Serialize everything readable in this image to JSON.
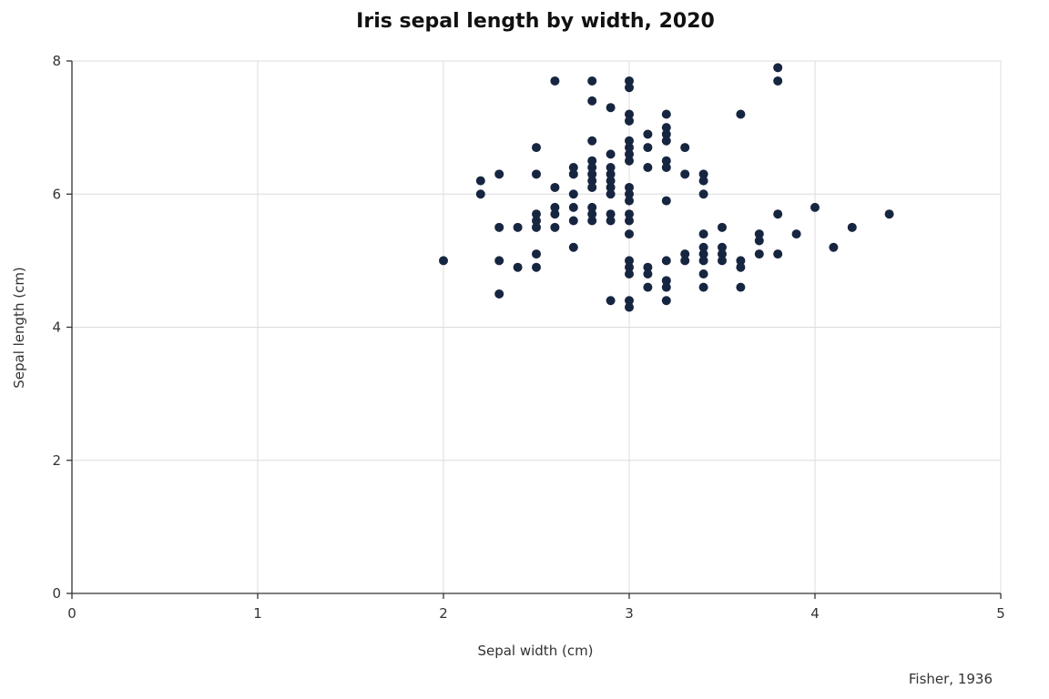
{
  "chart_data": {
    "type": "scatter",
    "title": "Iris sepal length by width, 2020",
    "xlabel": "Sepal width (cm)",
    "ylabel": "Sepal length (cm)",
    "source": "Fisher, 1936",
    "xlim": [
      0,
      5
    ],
    "ylim": [
      0,
      8
    ],
    "xticks": [
      0,
      1,
      2,
      3,
      4,
      5
    ],
    "yticks": [
      0,
      2,
      4,
      6,
      8
    ],
    "grid": true,
    "marker_color": "#172640",
    "points": [
      [
        2.0,
        5.0
      ],
      [
        2.2,
        6.2
      ],
      [
        2.2,
        6.0
      ],
      [
        2.3,
        6.3
      ],
      [
        2.3,
        5.5
      ],
      [
        2.3,
        5.0
      ],
      [
        2.3,
        4.5
      ],
      [
        2.4,
        5.5
      ],
      [
        2.4,
        4.9
      ],
      [
        2.5,
        6.7
      ],
      [
        2.5,
        6.3
      ],
      [
        2.5,
        5.7
      ],
      [
        2.5,
        5.6
      ],
      [
        2.5,
        5.5
      ],
      [
        2.5,
        5.1
      ],
      [
        2.5,
        4.9
      ],
      [
        2.6,
        7.7
      ],
      [
        2.6,
        6.1
      ],
      [
        2.6,
        5.8
      ],
      [
        2.6,
        5.7
      ],
      [
        2.6,
        5.5
      ],
      [
        2.7,
        6.4
      ],
      [
        2.7,
        6.3
      ],
      [
        2.7,
        6.0
      ],
      [
        2.7,
        5.8
      ],
      [
        2.7,
        5.6
      ],
      [
        2.7,
        5.2
      ],
      [
        2.8,
        7.7
      ],
      [
        2.8,
        7.4
      ],
      [
        2.8,
        6.8
      ],
      [
        2.8,
        6.5
      ],
      [
        2.8,
        6.4
      ],
      [
        2.8,
        6.3
      ],
      [
        2.8,
        6.2
      ],
      [
        2.8,
        6.1
      ],
      [
        2.8,
        5.8
      ],
      [
        2.8,
        5.7
      ],
      [
        2.8,
        5.6
      ],
      [
        2.9,
        7.3
      ],
      [
        2.9,
        6.6
      ],
      [
        2.9,
        6.4
      ],
      [
        2.9,
        6.3
      ],
      [
        2.9,
        6.2
      ],
      [
        2.9,
        6.1
      ],
      [
        2.9,
        6.0
      ],
      [
        2.9,
        5.7
      ],
      [
        2.9,
        5.6
      ],
      [
        2.9,
        4.4
      ],
      [
        3.0,
        7.7
      ],
      [
        3.0,
        7.6
      ],
      [
        3.0,
        7.2
      ],
      [
        3.0,
        7.1
      ],
      [
        3.0,
        6.8
      ],
      [
        3.0,
        6.7
      ],
      [
        3.0,
        6.6
      ],
      [
        3.0,
        6.5
      ],
      [
        3.0,
        6.1
      ],
      [
        3.0,
        6.0
      ],
      [
        3.0,
        5.9
      ],
      [
        3.0,
        5.7
      ],
      [
        3.0,
        5.6
      ],
      [
        3.0,
        5.4
      ],
      [
        3.0,
        5.0
      ],
      [
        3.0,
        4.9
      ],
      [
        3.0,
        4.8
      ],
      [
        3.0,
        4.4
      ],
      [
        3.0,
        4.3
      ],
      [
        3.1,
        6.9
      ],
      [
        3.1,
        6.7
      ],
      [
        3.1,
        6.4
      ],
      [
        3.1,
        4.9
      ],
      [
        3.1,
        4.8
      ],
      [
        3.1,
        4.6
      ],
      [
        3.2,
        7.2
      ],
      [
        3.2,
        7.0
      ],
      [
        3.2,
        6.9
      ],
      [
        3.2,
        6.8
      ],
      [
        3.2,
        6.5
      ],
      [
        3.2,
        6.4
      ],
      [
        3.2,
        5.9
      ],
      [
        3.2,
        5.0
      ],
      [
        3.2,
        4.7
      ],
      [
        3.2,
        4.6
      ],
      [
        3.2,
        4.4
      ],
      [
        3.3,
        6.7
      ],
      [
        3.3,
        6.3
      ],
      [
        3.3,
        5.1
      ],
      [
        3.3,
        5.0
      ],
      [
        3.4,
        6.3
      ],
      [
        3.4,
        6.2
      ],
      [
        3.4,
        6.0
      ],
      [
        3.4,
        5.4
      ],
      [
        3.4,
        5.2
      ],
      [
        3.4,
        5.1
      ],
      [
        3.4,
        5.0
      ],
      [
        3.4,
        4.8
      ],
      [
        3.4,
        4.6
      ],
      [
        3.5,
        5.5
      ],
      [
        3.5,
        5.2
      ],
      [
        3.5,
        5.1
      ],
      [
        3.5,
        5.0
      ],
      [
        3.6,
        7.2
      ],
      [
        3.6,
        5.0
      ],
      [
        3.6,
        4.9
      ],
      [
        3.6,
        4.6
      ],
      [
        3.7,
        5.4
      ],
      [
        3.7,
        5.3
      ],
      [
        3.7,
        5.1
      ],
      [
        3.8,
        7.9
      ],
      [
        3.8,
        7.7
      ],
      [
        3.8,
        5.7
      ],
      [
        3.8,
        5.1
      ],
      [
        3.9,
        5.4
      ],
      [
        4.0,
        5.8
      ],
      [
        4.1,
        5.2
      ],
      [
        4.2,
        5.5
      ],
      [
        4.4,
        5.7
      ]
    ]
  }
}
